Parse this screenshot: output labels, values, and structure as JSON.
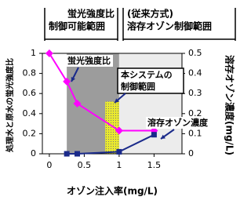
{
  "chart_data": {
    "type": "line",
    "headers": [
      "蛍光強度比",
      "制御可能範囲",
      "(従来方式)",
      "溶存オゾン制御範囲"
    ],
    "annotations": [
      "蛍光強度比",
      "本システムの",
      "制御範囲",
      "溶存オゾン濃度"
    ],
    "xlabel": "オゾン注入率(mg/L)",
    "ylabel": "処理水と原水の蛍光強度比",
    "y2label": "溶存オゾン濃度(mg/L)",
    "xlim": [
      -0.1,
      1.9
    ],
    "xticks": [
      0,
      0.5,
      1,
      1.5
    ],
    "ylim": [
      0,
      1
    ],
    "yticks": [
      0,
      0.2,
      0.4,
      0.6,
      0.8,
      1
    ],
    "y2lim": [
      0,
      0.5
    ],
    "y2ticks": [
      0,
      0.1,
      0.2,
      0.3,
      0.4,
      0.5
    ],
    "regions": [
      {
        "x": [
          0.25,
          1
        ],
        "color": "#9c9c9c"
      },
      {
        "x": [
          1,
          1.9
        ],
        "color": "#ececec"
      }
    ],
    "highlight": {
      "x": [
        0.8,
        1
      ],
      "y": [
        0,
        0.52
      ],
      "color": "#e8e830"
    },
    "series": [
      {
        "name": "蛍光強度比",
        "color": "#ff00ff",
        "marker": "diamond",
        "x": [
          0,
          0.25,
          0.4,
          1,
          1.5
        ],
        "values": [
          1,
          0.72,
          0.5,
          0.23,
          0.23
        ]
      },
      {
        "name": "溶存オゾン濃度",
        "color": "#1a2a8a",
        "marker": "square",
        "axis": "y2",
        "x": [
          0.25,
          0.4,
          1,
          1.5
        ],
        "values": [
          0,
          0,
          0.01,
          0.095
        ]
      }
    ]
  }
}
